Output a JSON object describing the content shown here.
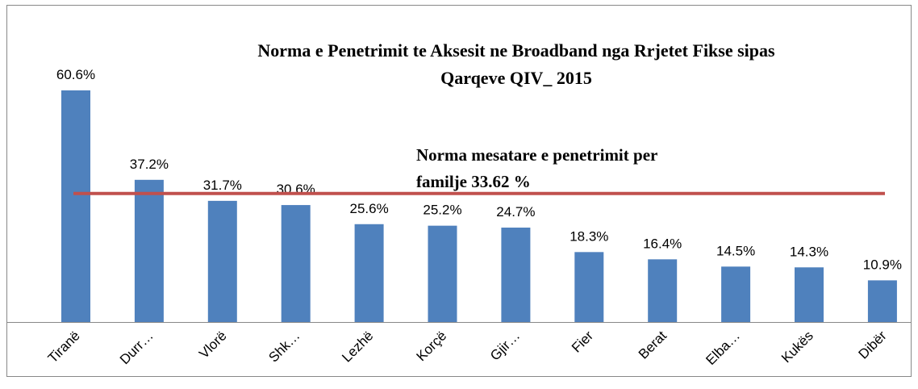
{
  "chart_data": {
    "type": "bar",
    "title": [
      "Norma e Penetrimit  te Aksesit ne Broadband nga Rrjetet Fikse sipas",
      "Qarqeve QIV_ 2015"
    ],
    "categories": [
      "Tiranë",
      "Durr…",
      "Vlorë",
      "Shk…",
      "Lezhë",
      "Korçë",
      "Gjir…",
      "Fier",
      "Berat",
      "Elba…",
      "Kukës",
      "Dibër"
    ],
    "values": [
      60.6,
      37.2,
      31.7,
      30.6,
      25.6,
      25.2,
      24.7,
      18.3,
      16.4,
      14.5,
      14.3,
      10.9
    ],
    "value_labels": [
      "60.6%",
      "37.2%",
      "31.7%",
      "30.6%",
      "25.6%",
      "25.2%",
      "24.7%",
      "18.3%",
      "16.4%",
      "14.5%",
      "14.3%",
      "10.9%"
    ],
    "color": "#4f81bd",
    "ylim": [
      0,
      65
    ],
    "average_line": {
      "value": 33.62,
      "color": "#c0504d",
      "label": [
        "Norma  mesatare e penetrimit  per",
        "familje 33.62 %"
      ]
    }
  }
}
